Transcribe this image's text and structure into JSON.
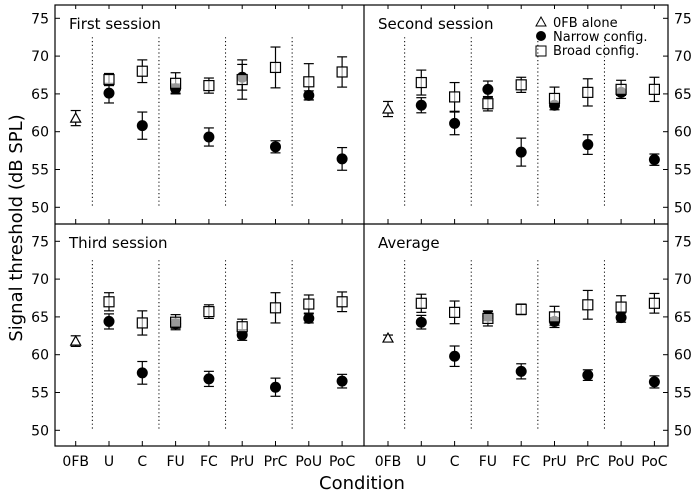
{
  "chart_data": {
    "type": "scatter",
    "xlabel": "Condition",
    "ylabel": "Signal threshold (dB SPL)",
    "categories": [
      "0FB",
      "U",
      "C",
      "FU",
      "FC",
      "PrU",
      "PrC",
      "PoU",
      "PoC"
    ],
    "ylim": [
      50,
      75
    ],
    "yticks": [
      50,
      55,
      60,
      65,
      70,
      75
    ],
    "grid": false,
    "error_bars": true,
    "legend": {
      "placement": "top-right of second panel",
      "entries": [
        {
          "label": "0FB alone",
          "marker": "open-triangle"
        },
        {
          "label": "Narrow config.",
          "marker": "filled-circle"
        },
        {
          "label": "Broad config.",
          "marker": "open-square"
        }
      ]
    },
    "panels": [
      {
        "title": "First session",
        "ofb_alone": {
          "value": 61.8,
          "err": 1.0
        },
        "narrow": {
          "values": [
            null,
            65.1,
            60.8,
            65.7,
            59.3,
            67.2,
            58.0,
            64.8,
            56.4
          ],
          "err": [
            null,
            1.3,
            1.8,
            0.6,
            1.2,
            1.7,
            0.8,
            0.6,
            1.5
          ]
        },
        "broad": {
          "values": [
            null,
            66.9,
            68.0,
            66.4,
            66.1,
            66.9,
            68.5,
            66.6,
            67.9
          ],
          "err": [
            null,
            0.8,
            1.5,
            1.4,
            1.0,
            2.6,
            2.7,
            2.4,
            2.0
          ]
        }
      },
      {
        "title": "Second session",
        "ofb_alone": {
          "value": 63.0,
          "err": 1.0
        },
        "narrow": {
          "values": [
            null,
            63.5,
            61.1,
            65.6,
            57.3,
            63.5,
            58.3,
            65.2,
            56.3
          ],
          "err": [
            null,
            1.0,
            1.5,
            1.1,
            1.85,
            0.3,
            1.3,
            0.4,
            0.75
          ]
        },
        "broad": {
          "values": [
            null,
            66.5,
            64.6,
            63.7,
            66.2,
            64.4,
            65.2,
            65.6,
            65.6
          ],
          "err": [
            null,
            1.65,
            1.9,
            0.95,
            1.0,
            1.5,
            1.8,
            1.2,
            1.6
          ]
        }
      },
      {
        "title": "Third session",
        "ofb_alone": {
          "value": 61.8,
          "err": 0.7
        },
        "narrow": {
          "values": [
            null,
            64.4,
            57.6,
            64.1,
            56.8,
            62.6,
            55.7,
            64.8,
            56.5
          ],
          "err": [
            null,
            1.0,
            1.5,
            0.6,
            1.0,
            0.7,
            1.2,
            0.6,
            0.9
          ]
        },
        "broad": {
          "values": [
            null,
            67.0,
            64.2,
            64.3,
            65.7,
            63.7,
            66.2,
            66.7,
            67.0
          ],
          "err": [
            null,
            1.2,
            1.6,
            1.0,
            0.9,
            1.0,
            2.0,
            1.2,
            1.3
          ]
        }
      },
      {
        "title": "Average",
        "ofb_alone": {
          "value": 62.2,
          "err": 0.4
        },
        "narrow": {
          "values": [
            null,
            64.3,
            59.8,
            65.1,
            57.8,
            64.4,
            57.3,
            64.9,
            56.4
          ],
          "err": [
            null,
            0.9,
            1.35,
            0.6,
            1.0,
            0.5,
            0.7,
            0.6,
            0.8
          ]
        },
        "broad": {
          "values": [
            null,
            66.8,
            65.6,
            64.8,
            66.0,
            65.0,
            66.6,
            66.3,
            66.8
          ],
          "err": [
            null,
            1.2,
            1.5,
            1.0,
            0.7,
            1.4,
            1.9,
            1.5,
            1.3
          ]
        }
      }
    ]
  }
}
